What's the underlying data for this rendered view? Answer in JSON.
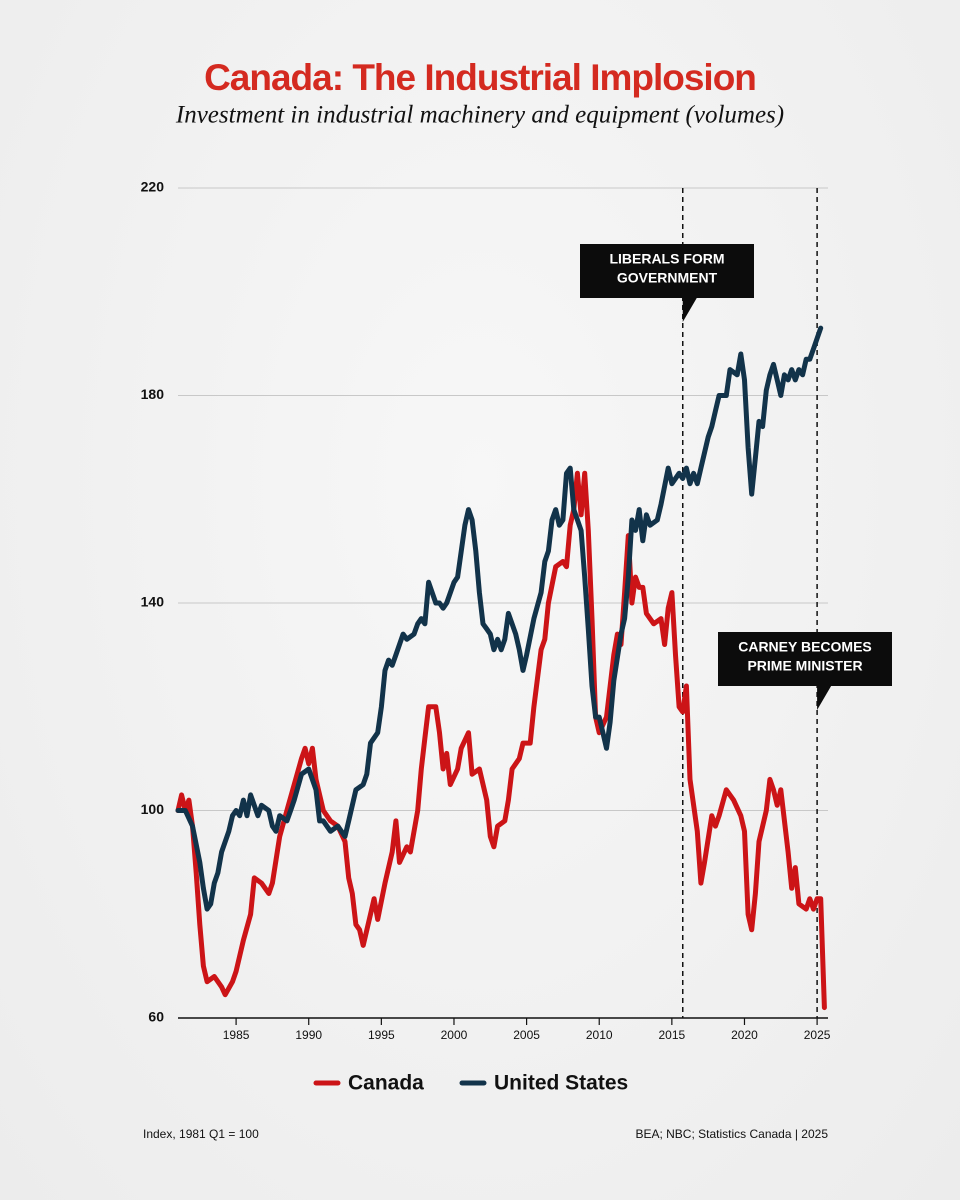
{
  "chart_data": {
    "type": "line",
    "title": "Canada: The Industrial Implosion",
    "subtitle": "Investment in industrial machinery and equipment (volumes)",
    "xlim": [
      1981,
      2025.75
    ],
    "xticks": [
      1985,
      1990,
      1995,
      2000,
      2005,
      2010,
      2015,
      2020,
      2025
    ],
    "ylim": [
      60,
      220
    ],
    "yticks": [
      60,
      100,
      140,
      180,
      220
    ],
    "grid": true,
    "legend": "bottom",
    "annotations": [
      {
        "lines": [
          "LIBERALS FORM",
          "GOVERNMENT"
        ],
        "x": 2015.75
      },
      {
        "lines": [
          "CARNEY BECOMES",
          "PRIME MINISTER"
        ],
        "x": 2025.0
      }
    ],
    "series": [
      {
        "name": "Canada",
        "color": "#cc1417",
        "x": [
          1981.0,
          1981.25,
          1981.5,
          1981.75,
          1982.0,
          1982.25,
          1982.5,
          1982.75,
          1983.0,
          1983.5,
          1984.0,
          1984.25,
          1984.75,
          1985.0,
          1985.5,
          1986.0,
          1986.25,
          1986.75,
          1987.25,
          1987.5,
          1988.0,
          1988.5,
          1989.0,
          1989.5,
          1989.75,
          1990.0,
          1990.25,
          1990.5,
          1991.0,
          1991.5,
          1992.0,
          1992.5,
          1992.75,
          1993.0,
          1993.25,
          1993.5,
          1993.75,
          1994.25,
          1994.5,
          1994.75,
          1995.25,
          1995.75,
          1996.0,
          1996.25,
          1996.75,
          1997.0,
          1997.5,
          1997.75,
          1998.0,
          1998.25,
          1998.75,
          1999.0,
          1999.25,
          1999.5,
          1999.75,
          2000.25,
          2000.5,
          2001.0,
          2001.25,
          2001.75,
          2002.25,
          2002.5,
          2002.75,
          2003.0,
          2003.5,
          2003.75,
          2004.0,
          2004.5,
          2004.75,
          2005.25,
          2005.5,
          2006.0,
          2006.25,
          2006.5,
          2007.0,
          2007.5,
          2007.75,
          2008.0,
          2008.25,
          2008.5,
          2008.75,
          2009.0,
          2009.25,
          2009.5,
          2009.75,
          2010.0,
          2010.5,
          2011.0,
          2011.25,
          2011.5,
          2011.75,
          2012.0,
          2012.25,
          2012.5,
          2012.75,
          2013.0,
          2013.25,
          2013.75,
          2014.25,
          2014.5,
          2014.75,
          2015.0,
          2015.25,
          2015.5,
          2015.75,
          2016.0,
          2016.25,
          2016.75,
          2017.0,
          2017.25,
          2017.75,
          2018.0,
          2018.25,
          2018.75,
          2019.25,
          2019.75,
          2020.0,
          2020.25,
          2020.5,
          2020.75,
          2021.0,
          2021.5,
          2021.75,
          2022.0,
          2022.25,
          2022.5,
          2023.0,
          2023.25,
          2023.5,
          2023.75,
          2024.25,
          2024.5,
          2024.75,
          2025.0,
          2025.25,
          2025.5
        ],
        "values": [
          100,
          103,
          100,
          102,
          97,
          88,
          78,
          70,
          67,
          68,
          66,
          64.5,
          67,
          69,
          75,
          80,
          87,
          86,
          84,
          86,
          95,
          100,
          105,
          110,
          112,
          109,
          112,
          106,
          100,
          98,
          97,
          94,
          87,
          84,
          78,
          77,
          74,
          80,
          83,
          79,
          86,
          92,
          98,
          90,
          93,
          92,
          100,
          108,
          114,
          120,
          120,
          115,
          108,
          111,
          105,
          108,
          112,
          115,
          107,
          108,
          102,
          95,
          93,
          97,
          98,
          102,
          108,
          110,
          113,
          113,
          120,
          131,
          133,
          140,
          147,
          148,
          147,
          155,
          158,
          165,
          157,
          165,
          154,
          137,
          118,
          115,
          118,
          130,
          134,
          132,
          142,
          153,
          140,
          145,
          143,
          143,
          138,
          136,
          137,
          132,
          139,
          142,
          130,
          120,
          119,
          124,
          106,
          96,
          86,
          90,
          99,
          97,
          99,
          104,
          102,
          99,
          96,
          80,
          77,
          84,
          94,
          100,
          106,
          104,
          101,
          104,
          92,
          85,
          89,
          82,
          81,
          83,
          81,
          83,
          83,
          62
        ]
      },
      {
        "name": "United States",
        "color": "#12334a",
        "x": [
          1981.0,
          1981.5,
          1982.0,
          1982.5,
          1982.75,
          1983.0,
          1983.25,
          1983.5,
          1983.75,
          1984.0,
          1984.5,
          1984.75,
          1985.0,
          1985.25,
          1985.5,
          1985.75,
          1986.0,
          1986.5,
          1986.75,
          1987.25,
          1987.5,
          1987.75,
          1988.0,
          1988.5,
          1988.75,
          1989.0,
          1989.5,
          1990.0,
          1990.5,
          1990.75,
          1991.0,
          1991.5,
          1992.0,
          1992.5,
          1992.75,
          1993.25,
          1993.75,
          1994.0,
          1994.25,
          1994.75,
          1995.0,
          1995.25,
          1995.5,
          1995.75,
          1996.0,
          1996.5,
          1996.75,
          1997.25,
          1997.5,
          1997.75,
          1998.0,
          1998.25,
          1998.75,
          1999.0,
          1999.25,
          1999.5,
          2000.0,
          2000.25,
          2000.75,
          2001.0,
          2001.25,
          2001.5,
          2001.75,
          2002.0,
          2002.25,
          2002.5,
          2002.75,
          2003.0,
          2003.25,
          2003.5,
          2003.75,
          2004.25,
          2004.5,
          2004.75,
          2005.0,
          2005.5,
          2006.0,
          2006.25,
          2006.5,
          2006.75,
          2007.0,
          2007.25,
          2007.5,
          2007.75,
          2008.0,
          2008.25,
          2008.75,
          2009.0,
          2009.25,
          2009.5,
          2009.75,
          2010.0,
          2010.25,
          2010.5,
          2010.75,
          2011.0,
          2011.5,
          2011.75,
          2012.0,
          2012.25,
          2012.5,
          2012.75,
          2013.0,
          2013.25,
          2013.5,
          2014.0,
          2014.25,
          2014.75,
          2015.0,
          2015.5,
          2015.75,
          2016.0,
          2016.25,
          2016.5,
          2016.75,
          2017.0,
          2017.5,
          2017.75,
          2018.0,
          2018.25,
          2018.75,
          2019.0,
          2019.5,
          2019.75,
          2020.0,
          2020.25,
          2020.5,
          2020.75,
          2021.0,
          2021.25,
          2021.5,
          2021.75,
          2022.0,
          2022.25,
          2022.5,
          2022.75,
          2023.0,
          2023.25,
          2023.5,
          2023.75,
          2024.0,
          2024.25,
          2024.5,
          2024.75,
          2025.0,
          2025.25
        ],
        "values": [
          100,
          100,
          97,
          90,
          85,
          81,
          82,
          86,
          88,
          92,
          96,
          99,
          100,
          99,
          102,
          99,
          103,
          99,
          101,
          100,
          97,
          96,
          99,
          98,
          100,
          102,
          107,
          108,
          104,
          98,
          98,
          96,
          97,
          95,
          98,
          104,
          105,
          107,
          113,
          115,
          120,
          127,
          129,
          128,
          130,
          134,
          133,
          134,
          136,
          137,
          136,
          144,
          140,
          140,
          139,
          140,
          144,
          145,
          155,
          158,
          156,
          150,
          142,
          136,
          135,
          134,
          131,
          133,
          131,
          133,
          138,
          134,
          131,
          127,
          130,
          137,
          142,
          148,
          150,
          156,
          158,
          155,
          156,
          165,
          166,
          158,
          154,
          145,
          135,
          124,
          118,
          118,
          115,
          112,
          117,
          125,
          134,
          137,
          145,
          156,
          154,
          158,
          152,
          157,
          155,
          156,
          159,
          166,
          163,
          165,
          164,
          166,
          163,
          165,
          163,
          166,
          172,
          174,
          177,
          180,
          180,
          185,
          184,
          188,
          183,
          170,
          161,
          168,
          175,
          174,
          181,
          184,
          186,
          183,
          180,
          184,
          183,
          185,
          183,
          185,
          184,
          187,
          187,
          189,
          191,
          193
        ]
      }
    ],
    "footnote_left": "Index, 1981 Q1 = 100",
    "footnote_right": "BEA; NBC; Statistics Canada | 2025"
  }
}
